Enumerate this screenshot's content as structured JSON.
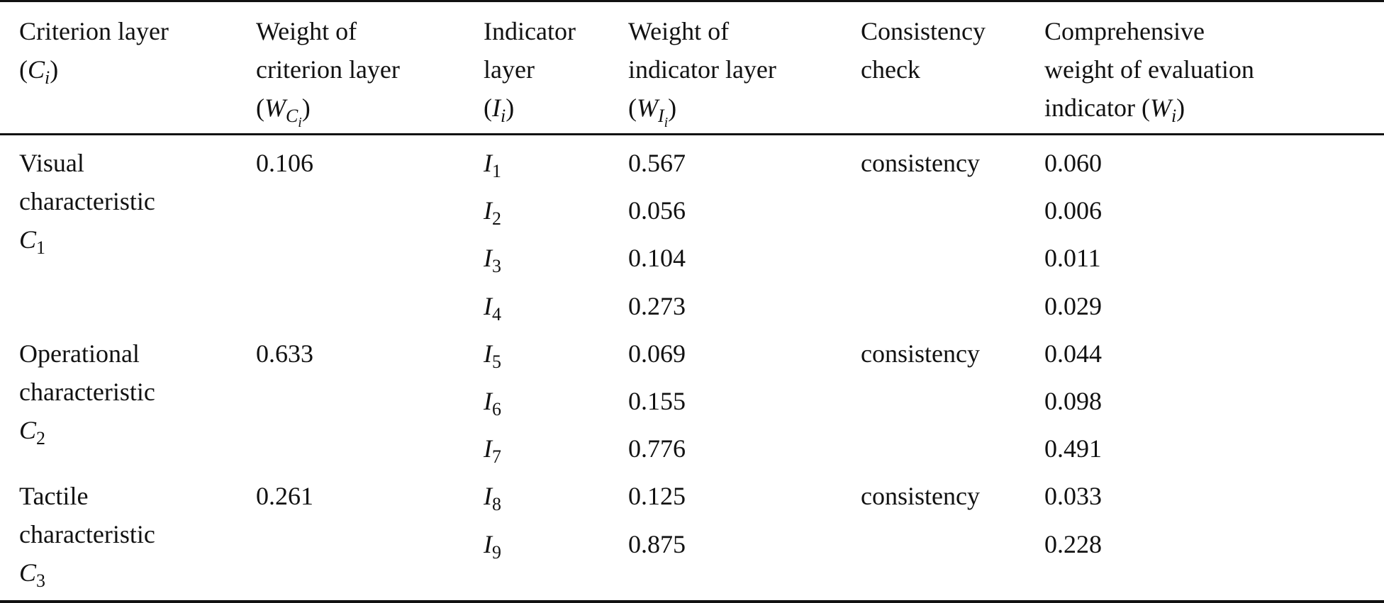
{
  "table": {
    "columns": [
      [
        [
          {
            "t": "Criterion layer"
          }
        ],
        [
          {
            "t": "("
          },
          {
            "t": "C",
            "it": true
          },
          {
            "t": "i",
            "it": true,
            "sub": 1
          },
          {
            "t": ")"
          }
        ]
      ],
      [
        [
          {
            "t": "Weight of"
          }
        ],
        [
          {
            "t": "criterion layer"
          }
        ],
        [
          {
            "t": "("
          },
          {
            "t": "W",
            "it": true
          },
          {
            "t": "C",
            "it": true,
            "sub": 1
          },
          {
            "t": "i",
            "it": true,
            "sub": 2
          },
          {
            "t": ")"
          }
        ]
      ],
      [
        [
          {
            "t": "Indicator"
          }
        ],
        [
          {
            "t": "layer"
          }
        ],
        [
          {
            "t": "("
          },
          {
            "t": "I",
            "it": true
          },
          {
            "t": "i",
            "it": true,
            "sub": 1
          },
          {
            "t": ")"
          }
        ]
      ],
      [
        [
          {
            "t": "Weight of"
          }
        ],
        [
          {
            "t": "indicator layer"
          }
        ],
        [
          {
            "t": "("
          },
          {
            "t": "W",
            "it": true
          },
          {
            "t": "I",
            "it": true,
            "sub": 1
          },
          {
            "t": "i",
            "it": true,
            "sub": 2
          },
          {
            "t": ")"
          }
        ]
      ],
      [
        [
          {
            "t": "Consistency"
          }
        ],
        [
          {
            "t": "check"
          }
        ]
      ],
      [
        [
          {
            "t": "Comprehensive"
          }
        ],
        [
          {
            "t": "weight of evaluation"
          }
        ],
        [
          {
            "t": "indicator ("
          },
          {
            "t": "W",
            "it": true
          },
          {
            "t": "i",
            "it": true,
            "sub": 1
          },
          {
            "t": ")"
          }
        ]
      ]
    ],
    "groups": [
      {
        "criterion": [
          [
            {
              "t": "Visual"
            }
          ],
          [
            {
              "t": "characteristic"
            }
          ],
          [
            {
              "t": "C",
              "it": true
            },
            {
              "t": "1",
              "sub": 1
            }
          ]
        ],
        "weight": "0.106",
        "check": "consistency",
        "indicators": [
          {
            "symbol": "I",
            "sub": "1",
            "weight": "0.567",
            "comprehensive": "0.060"
          },
          {
            "symbol": "I",
            "sub": "2",
            "weight": "0.056",
            "comprehensive": "0.006"
          },
          {
            "symbol": "I",
            "sub": "3",
            "weight": "0.104",
            "comprehensive": "0.011"
          },
          {
            "symbol": "I",
            "sub": "4",
            "weight": "0.273",
            "comprehensive": "0.029"
          }
        ]
      },
      {
        "criterion": [
          [
            {
              "t": "Operational"
            }
          ],
          [
            {
              "t": "characteristic"
            }
          ],
          [
            {
              "t": "C",
              "it": true
            },
            {
              "t": "2",
              "sub": 1
            }
          ]
        ],
        "weight": "0.633",
        "check": "consistency",
        "indicators": [
          {
            "symbol": "I",
            "sub": "5",
            "weight": "0.069",
            "comprehensive": "0.044"
          },
          {
            "symbol": "I",
            "sub": "6",
            "weight": "0.155",
            "comprehensive": "0.098"
          },
          {
            "symbol": "I",
            "sub": "7",
            "weight": "0.776",
            "comprehensive": "0.491"
          }
        ]
      },
      {
        "criterion": [
          [
            {
              "t": "Tactile"
            }
          ],
          [
            {
              "t": "characteristic"
            }
          ],
          [
            {
              "t": "C",
              "it": true
            },
            {
              "t": "3",
              "sub": 1
            }
          ]
        ],
        "weight": "0.261",
        "check": "consistency",
        "indicators": [
          {
            "symbol": "I",
            "sub": "8",
            "weight": "0.125",
            "comprehensive": "0.033"
          },
          {
            "symbol": "I",
            "sub": "9",
            "weight": "0.875",
            "comprehensive": "0.228"
          }
        ]
      }
    ]
  }
}
